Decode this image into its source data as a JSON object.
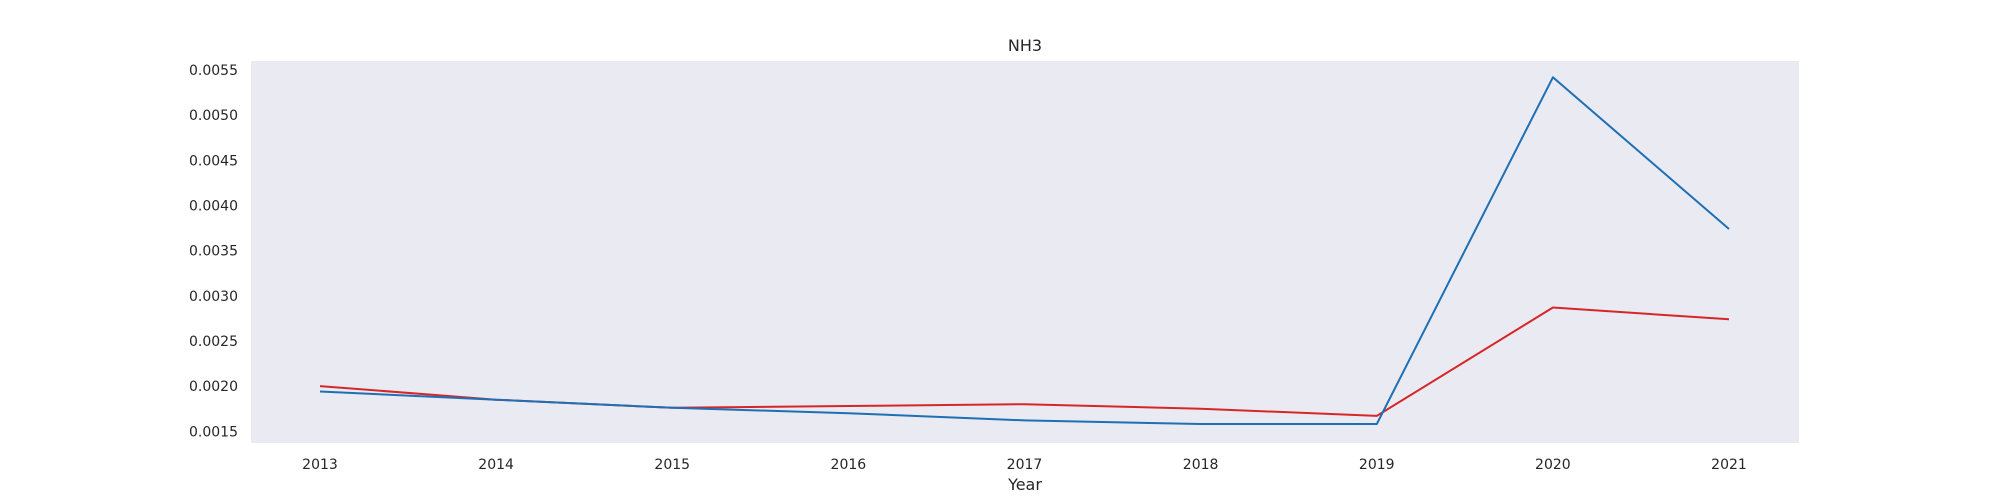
{
  "chart_data": {
    "type": "line",
    "title": "NH3",
    "xlabel": "Year",
    "ylabel": "",
    "x": [
      2013,
      2014,
      2015,
      2016,
      2017,
      2018,
      2019,
      2020,
      2021
    ],
    "xticks": [
      "2013",
      "2014",
      "2015",
      "2016",
      "2017",
      "2018",
      "2019",
      "2020",
      "2021"
    ],
    "yticks": [
      "0.0015",
      "0.0020",
      "0.0025",
      "0.0030",
      "0.0035",
      "0.0040",
      "0.0045",
      "0.0050",
      "0.0055"
    ],
    "ylim": [
      0.00137,
      0.0056
    ],
    "grid": false,
    "legend": "none",
    "series": [
      {
        "color": "#d62728",
        "values": [
          0.002,
          0.00185,
          0.00176,
          0.00178,
          0.0018,
          0.00175,
          0.00167,
          0.00287,
          0.00274
        ]
      },
      {
        "color": "#1f6fb4",
        "values": [
          0.00194,
          0.00185,
          0.00176,
          0.0017,
          0.00162,
          0.00158,
          0.00158,
          0.00542,
          0.00374
        ]
      }
    ],
    "colors": {
      "plot_background": "#eaeaf2"
    }
  }
}
